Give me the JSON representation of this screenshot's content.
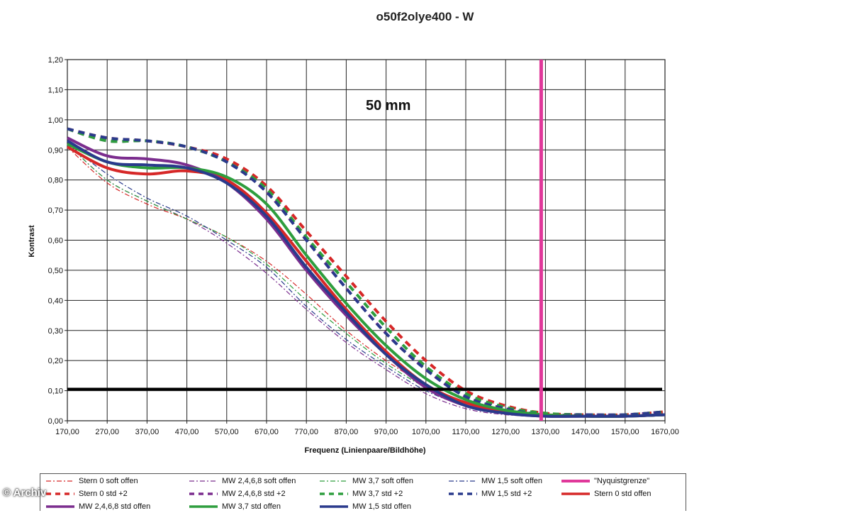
{
  "chart_data": {
    "type": "line",
    "title": "o50f2olye400 - W",
    "xlabel": "Frequenz (Linienpaare/Bildhöhe)",
    "ylabel": "Kontrast",
    "annotation": "50 mm",
    "xlim": [
      170,
      1670
    ],
    "ylim": [
      0,
      1.2
    ],
    "x_ticks": [
      "170,00",
      "270,00",
      "370,00",
      "470,00",
      "570,00",
      "670,00",
      "770,00",
      "870,00",
      "970,00",
      "1070,00",
      "1170,00",
      "1270,00",
      "1370,00",
      "1470,00",
      "1570,00",
      "1670,00"
    ],
    "y_ticks": [
      "0,00",
      "0,10",
      "0,20",
      "0,30",
      "0,40",
      "0,50",
      "0,60",
      "0,70",
      "0,80",
      "0,90",
      "1,00",
      "1,10",
      "1,20"
    ],
    "grid": true,
    "legend_position": "bottom",
    "threshold_line": 0.105,
    "nyquist_x": 1370,
    "series": [
      {
        "name": "Stern 0 soft offen",
        "color": "#d62828",
        "style": "dashdot",
        "width": 1.2,
        "x": [
          170,
          270,
          370,
          470,
          570,
          670,
          770,
          870,
          970,
          1070,
          1170,
          1270,
          1370,
          1470,
          1570,
          1670
        ],
        "y": [
          0.91,
          0.79,
          0.72,
          0.67,
          0.61,
          0.53,
          0.42,
          0.3,
          0.2,
          0.12,
          0.06,
          0.03,
          0.02,
          0.015,
          0.015,
          0.02
        ]
      },
      {
        "name": "MW 2,4,6,8 soft offen",
        "color": "#7b2d8e",
        "style": "dashdot",
        "width": 1.2,
        "x": [
          170,
          270,
          370,
          470,
          570,
          670,
          770,
          870,
          970,
          1070,
          1170,
          1270,
          1370,
          1470,
          1570,
          1670
        ],
        "y": [
          0.92,
          0.8,
          0.73,
          0.67,
          0.59,
          0.49,
          0.37,
          0.26,
          0.17,
          0.09,
          0.04,
          0.02,
          0.015,
          0.015,
          0.015,
          0.02
        ]
      },
      {
        "name": "MW 3,7 soft offen",
        "color": "#2e9e3e",
        "style": "dashdot",
        "width": 1.2,
        "x": [
          170,
          270,
          370,
          470,
          570,
          670,
          770,
          870,
          970,
          1070,
          1170,
          1270,
          1370,
          1470,
          1570,
          1670
        ],
        "y": [
          0.92,
          0.8,
          0.73,
          0.67,
          0.61,
          0.52,
          0.4,
          0.29,
          0.19,
          0.11,
          0.05,
          0.03,
          0.02,
          0.015,
          0.015,
          0.02
        ]
      },
      {
        "name": "MW 1,5 soft offen",
        "color": "#2a3a8c",
        "style": "dashdot",
        "width": 1.2,
        "x": [
          170,
          270,
          370,
          470,
          570,
          670,
          770,
          870,
          970,
          1070,
          1170,
          1270,
          1370,
          1470,
          1570,
          1670
        ],
        "y": [
          0.92,
          0.82,
          0.74,
          0.68,
          0.6,
          0.51,
          0.38,
          0.27,
          0.18,
          0.1,
          0.05,
          0.025,
          0.015,
          0.015,
          0.015,
          0.02
        ]
      },
      {
        "name": "\"Nyquistgrenze\"",
        "color": "#e0389a",
        "style": "nyquist",
        "width": 5
      },
      {
        "name": "Stern 0 std +2",
        "color": "#d62828",
        "style": "dash",
        "width": 4,
        "x": [
          170,
          270,
          370,
          470,
          570,
          670,
          770,
          870,
          970,
          1070,
          1170,
          1270,
          1370,
          1470,
          1570,
          1670
        ],
        "y": [
          0.97,
          0.94,
          0.93,
          0.91,
          0.87,
          0.78,
          0.63,
          0.48,
          0.33,
          0.2,
          0.1,
          0.05,
          0.025,
          0.02,
          0.02,
          0.03
        ]
      },
      {
        "name": "MW 2,4,6,8 std +2",
        "color": "#7b2d8e",
        "style": "dash",
        "width": 4,
        "x": [
          170,
          270,
          370,
          470,
          570,
          670,
          770,
          870,
          970,
          1070,
          1170,
          1270,
          1370,
          1470,
          1570,
          1670
        ],
        "y": [
          0.97,
          0.93,
          0.93,
          0.91,
          0.86,
          0.76,
          0.6,
          0.44,
          0.29,
          0.17,
          0.08,
          0.04,
          0.02,
          0.02,
          0.02,
          0.03
        ]
      },
      {
        "name": "MW 3,7 std +2",
        "color": "#2e9e3e",
        "style": "dash",
        "width": 4,
        "x": [
          170,
          270,
          370,
          470,
          570,
          670,
          770,
          870,
          970,
          1070,
          1170,
          1270,
          1370,
          1470,
          1570,
          1670
        ],
        "y": [
          0.97,
          0.93,
          0.93,
          0.91,
          0.86,
          0.77,
          0.61,
          0.46,
          0.31,
          0.18,
          0.09,
          0.045,
          0.025,
          0.02,
          0.02,
          0.03
        ]
      },
      {
        "name": "MW 1,5 std +2",
        "color": "#2a3a8c",
        "style": "dash",
        "width": 4,
        "x": [
          170,
          270,
          370,
          470,
          570,
          670,
          770,
          870,
          970,
          1070,
          1170,
          1270,
          1370,
          1470,
          1570,
          1670
        ],
        "y": [
          0.97,
          0.94,
          0.93,
          0.91,
          0.86,
          0.76,
          0.6,
          0.44,
          0.29,
          0.17,
          0.08,
          0.04,
          0.02,
          0.02,
          0.02,
          0.03
        ]
      },
      {
        "name": "Stern 0 std offen",
        "color": "#d62828",
        "style": "solid",
        "width": 4,
        "x": [
          170,
          270,
          370,
          470,
          570,
          670,
          770,
          870,
          970,
          1070,
          1170,
          1270,
          1370,
          1470,
          1570,
          1670
        ],
        "y": [
          0.91,
          0.84,
          0.82,
          0.83,
          0.8,
          0.69,
          0.53,
          0.37,
          0.23,
          0.12,
          0.06,
          0.03,
          0.02,
          0.015,
          0.015,
          0.02
        ]
      },
      {
        "name": "MW 2,4,6,8 std offen",
        "color": "#7b2d8e",
        "style": "solid",
        "width": 4,
        "x": [
          170,
          270,
          370,
          470,
          570,
          670,
          770,
          870,
          970,
          1070,
          1170,
          1270,
          1370,
          1470,
          1570,
          1670
        ],
        "y": [
          0.94,
          0.88,
          0.87,
          0.85,
          0.79,
          0.67,
          0.5,
          0.35,
          0.22,
          0.11,
          0.05,
          0.025,
          0.015,
          0.015,
          0.015,
          0.02
        ]
      },
      {
        "name": "MW 3,7 std offen",
        "color": "#2e9e3e",
        "style": "solid",
        "width": 4,
        "x": [
          170,
          270,
          370,
          470,
          570,
          670,
          770,
          870,
          970,
          1070,
          1170,
          1270,
          1370,
          1470,
          1570,
          1670
        ],
        "y": [
          0.92,
          0.86,
          0.84,
          0.84,
          0.81,
          0.72,
          0.55,
          0.39,
          0.25,
          0.14,
          0.07,
          0.035,
          0.02,
          0.015,
          0.015,
          0.02
        ]
      },
      {
        "name": "MW 1,5 std offen",
        "color": "#2a3a8c",
        "style": "solid",
        "width": 4,
        "x": [
          170,
          270,
          370,
          470,
          570,
          670,
          770,
          870,
          970,
          1070,
          1170,
          1270,
          1370,
          1470,
          1570,
          1670
        ],
        "y": [
          0.93,
          0.86,
          0.85,
          0.84,
          0.79,
          0.68,
          0.51,
          0.36,
          0.22,
          0.12,
          0.05,
          0.025,
          0.015,
          0.015,
          0.015,
          0.02
        ]
      }
    ]
  },
  "copyright": "© Archiv"
}
